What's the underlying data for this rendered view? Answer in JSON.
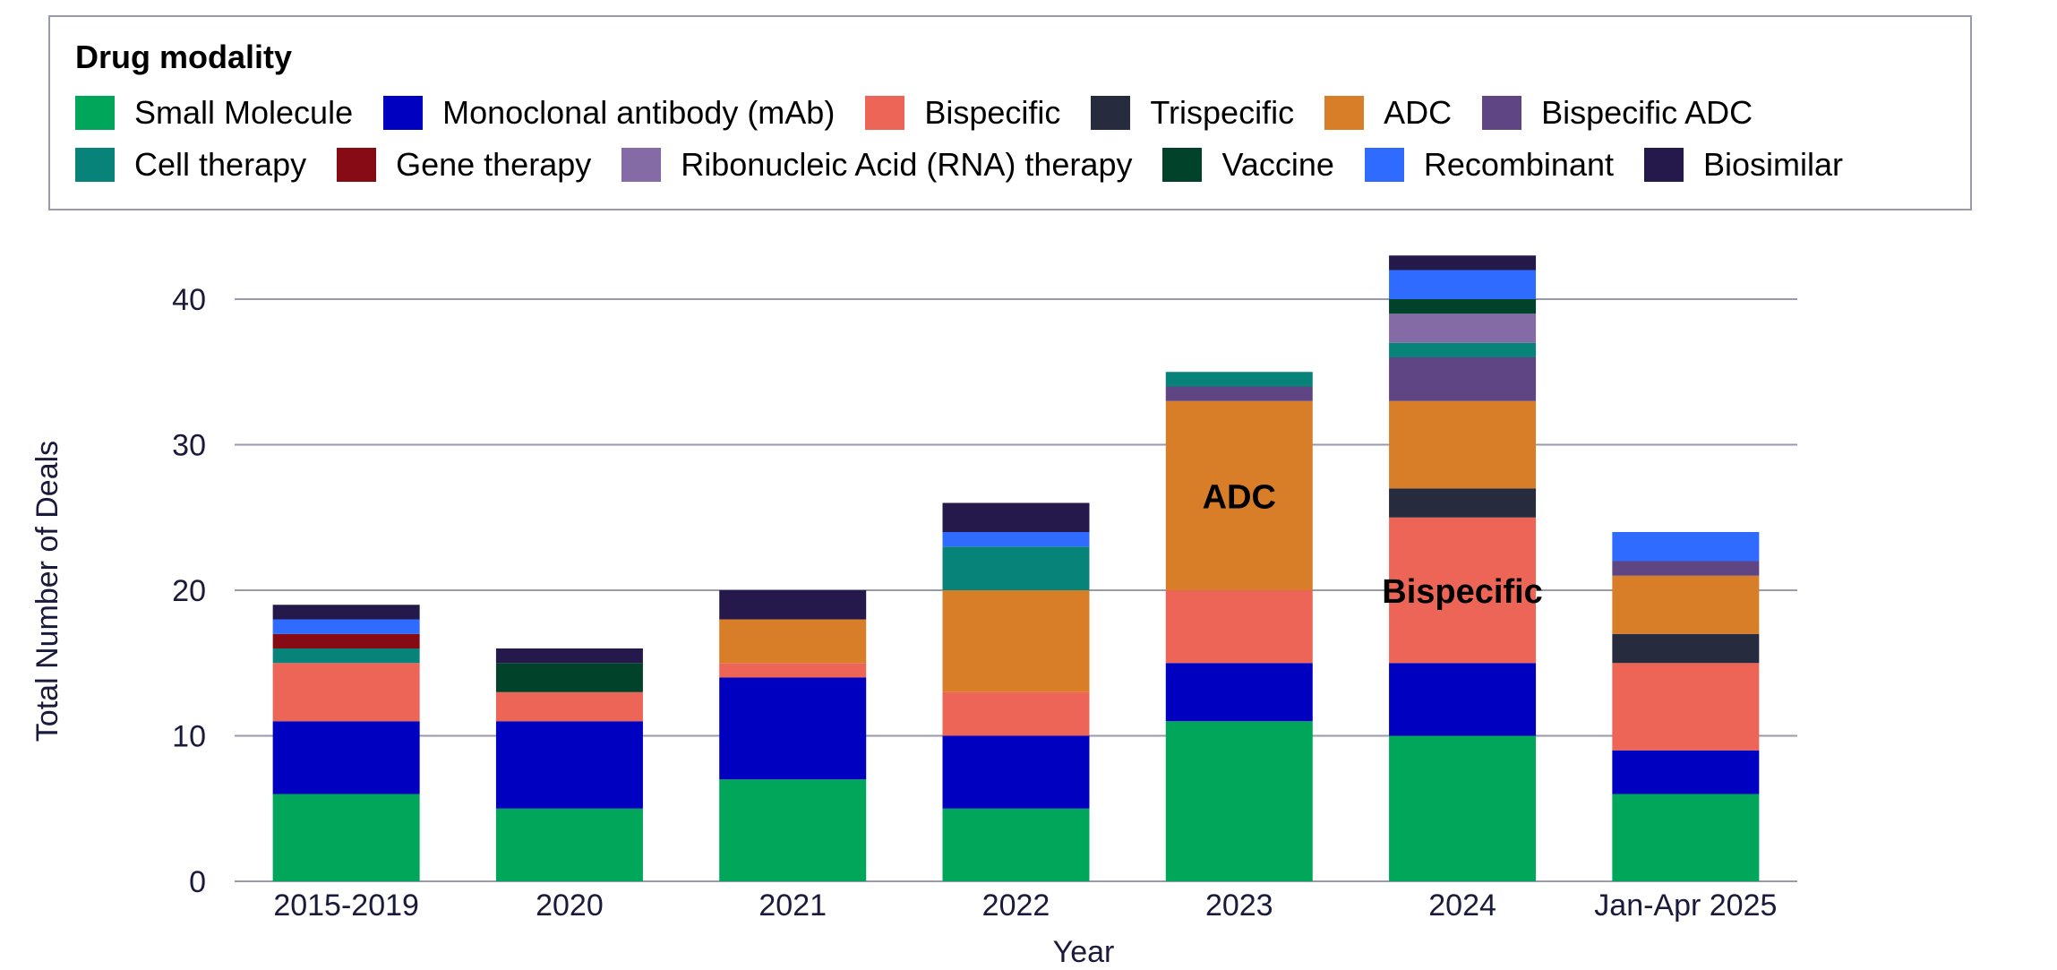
{
  "chart_data": {
    "type": "bar",
    "stacked": true,
    "legend_title": "Drug modality",
    "legend_placement": "top",
    "xlabel": "Year",
    "ylabel": "Total Number of Deals",
    "ylim": [
      0,
      43
    ],
    "yticks": [
      0,
      10,
      20,
      30,
      40
    ],
    "grid": true,
    "categories": [
      "2015-2019",
      "2020",
      "2021",
      "2022",
      "2023",
      "2024",
      "Jan-Apr 2025"
    ],
    "series": [
      {
        "name": "Small Molecule",
        "color": "#00A65A",
        "values": [
          6,
          5,
          7,
          5,
          11,
          10,
          6
        ]
      },
      {
        "name": "Monoclonal antibody (mAb)",
        "color": "#0000C0",
        "values": [
          5,
          6,
          7,
          5,
          4,
          5,
          3
        ]
      },
      {
        "name": "Bispecific",
        "color": "#EC6556",
        "values": [
          4,
          2,
          1,
          3,
          5,
          10,
          6
        ]
      },
      {
        "name": "Trispecific",
        "color": "#272B3E",
        "values": [
          0,
          0,
          0,
          0,
          0,
          2,
          2
        ]
      },
      {
        "name": "ADC",
        "color": "#D87E28",
        "values": [
          0,
          0,
          3,
          7,
          13,
          6,
          4
        ]
      },
      {
        "name": "Bispecific ADC",
        "color": "#5F4583",
        "values": [
          0,
          0,
          0,
          0,
          1,
          3,
          1
        ]
      },
      {
        "name": "Cell therapy",
        "color": "#08837A",
        "values": [
          1,
          0,
          0,
          3,
          1,
          1,
          0
        ]
      },
      {
        "name": "Gene therapy",
        "color": "#860B14",
        "values": [
          1,
          0,
          0,
          0,
          0,
          0,
          0
        ]
      },
      {
        "name": "Ribonucleic Acid (RNA) therapy",
        "color": "#846BA5",
        "values": [
          0,
          0,
          0,
          0,
          0,
          2,
          0
        ]
      },
      {
        "name": "Vaccine",
        "color": "#00432A",
        "values": [
          0,
          2,
          0,
          0,
          0,
          1,
          0
        ]
      },
      {
        "name": "Recombinant",
        "color": "#2F6BFF",
        "values": [
          1,
          0,
          0,
          1,
          0,
          2,
          2
        ]
      },
      {
        "name": "Biosimilar",
        "color": "#25194C",
        "values": [
          1,
          1,
          2,
          2,
          0,
          1,
          0
        ]
      }
    ],
    "annotations": [
      {
        "text": "ADC",
        "category": "2023",
        "series": "ADC"
      },
      {
        "text": "Bispecific",
        "category": "2024",
        "series": "Bispecific"
      }
    ]
  }
}
